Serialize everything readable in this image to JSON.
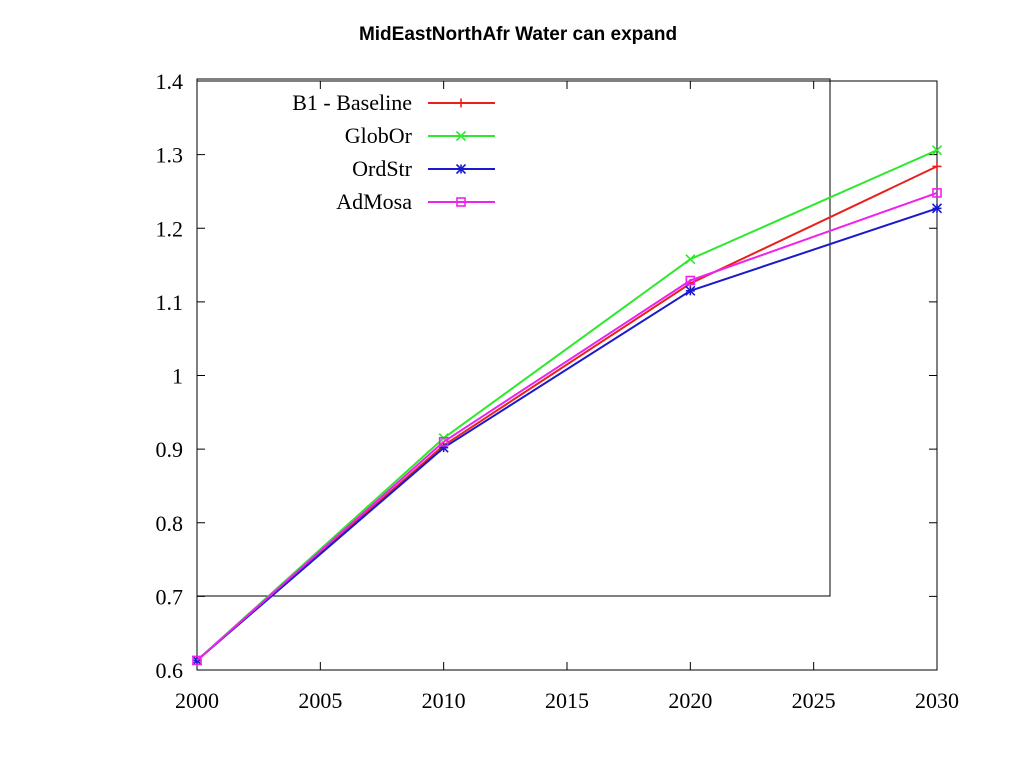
{
  "chart_data": {
    "type": "line",
    "title": "MidEastNorthAfr Water can expand",
    "xlabel": "",
    "ylabel": "",
    "xlim": [
      2000,
      2030
    ],
    "ylim": [
      0.6,
      1.4
    ],
    "x_ticks": [
      "2000",
      "2005",
      "2010",
      "2015",
      "2020",
      "2025",
      "2030"
    ],
    "y_ticks": [
      "0.6",
      "0.7",
      "0.8",
      "0.9",
      "1",
      "1.1",
      "1.2",
      "1.3",
      "1.4"
    ],
    "x": [
      2000,
      2010,
      2020,
      2030
    ],
    "legend_position": "top-left",
    "grid": false,
    "series": [
      {
        "name": "B1 - Baseline",
        "color": "#e8211d",
        "marker": "plus",
        "values": [
          0.613,
          0.905,
          1.125,
          1.284
        ]
      },
      {
        "name": "GlobOr",
        "color": "#2ee82e",
        "marker": "cross",
        "values": [
          0.613,
          0.915,
          1.158,
          1.306
        ]
      },
      {
        "name": "OrdStr",
        "color": "#1a1acc",
        "marker": "star",
        "values": [
          0.613,
          0.902,
          1.115,
          1.227
        ]
      },
      {
        "name": "AdMosa",
        "color": "#ee22ee",
        "marker": "square",
        "values": [
          0.613,
          0.91,
          1.129,
          1.248
        ]
      }
    ]
  }
}
